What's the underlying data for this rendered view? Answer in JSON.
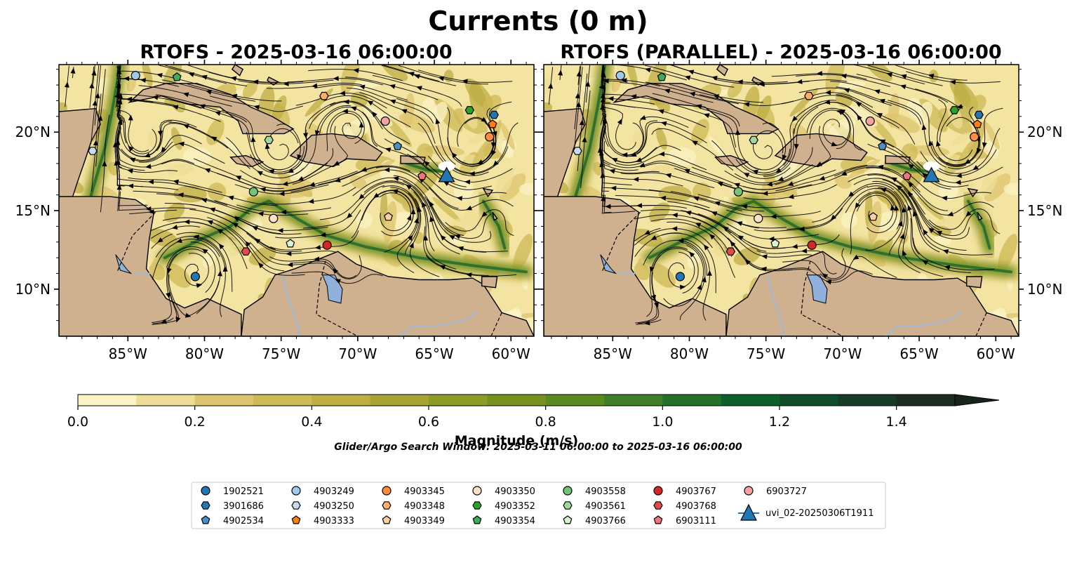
{
  "chart_data": {
    "type": "contour map with streamlines",
    "title": "Currents (0 m)",
    "panels": [
      {
        "title": "RTOFS - 2025-03-16 06:00:00"
      },
      {
        "title": "RTOFS (PARALLEL) - 2025-03-16 06:00:00"
      }
    ],
    "extent": {
      "lon": [
        -89.5,
        -58.5
      ],
      "lat": [
        7.0,
        24.3
      ]
    },
    "x_ticks": [
      {
        "value": -85,
        "label": "85°W"
      },
      {
        "value": -80,
        "label": "80°W"
      },
      {
        "value": -75,
        "label": "75°W"
      },
      {
        "value": -70,
        "label": "70°W"
      },
      {
        "value": -65,
        "label": "65°W"
      },
      {
        "value": -60,
        "label": "60°W"
      }
    ],
    "y_ticks": [
      {
        "value": 20,
        "label": "20°N"
      },
      {
        "value": 15,
        "label": "15°N"
      },
      {
        "value": 10,
        "label": "10°N"
      }
    ],
    "colorbar": {
      "label": "Magnitude (m/s)",
      "levels": [
        0.0,
        0.1,
        0.2,
        0.3,
        0.4,
        0.5,
        0.6,
        0.7,
        0.8,
        0.9,
        1.0,
        1.1,
        1.2,
        1.3,
        1.4,
        1.5
      ],
      "extend": "max",
      "ticks": [
        {
          "value": 0.0,
          "label": "0.0"
        },
        {
          "value": 0.2,
          "label": "0.2"
        },
        {
          "value": 0.4,
          "label": "0.4"
        },
        {
          "value": 0.6,
          "label": "0.6"
        },
        {
          "value": 0.8,
          "label": "0.8"
        },
        {
          "value": 1.0,
          "label": "1.0"
        },
        {
          "value": 1.2,
          "label": "1.2"
        },
        {
          "value": 1.4,
          "label": "1.4"
        }
      ],
      "colors": [
        "#fbf3c3",
        "#eedd96",
        "#ddc46e",
        "#cdb955",
        "#bfae44",
        "#a9a436",
        "#8d9c26",
        "#76911e",
        "#5b8a20",
        "#3f7f27",
        "#23712b",
        "#0d6029",
        "#104d2a",
        "#183b26",
        "#1c2c1e",
        "#16241a"
      ]
    },
    "search_window": "Glider/Argo Search Window: 2025-03-11 06:00:00 to 2025-03-16 06:00:00",
    "legend": {
      "placement": "bottom-center",
      "columns": [
        [
          {
            "label": "1902521",
            "marker": "circle",
            "color": "#1f77b4"
          },
          {
            "label": "3901686",
            "marker": "hexagon",
            "color": "#1f77b4"
          },
          {
            "label": "4902534",
            "marker": "pentagon",
            "color": "#4a90c8"
          }
        ],
        [
          {
            "label": "4903249",
            "marker": "circle",
            "color": "#9ecae9"
          },
          {
            "label": "4903250",
            "marker": "hexagon",
            "color": "#c6dbef"
          },
          {
            "label": "4903333",
            "marker": "pentagon",
            "color": "#ff7f0e"
          }
        ],
        [
          {
            "label": "4903345",
            "marker": "circle",
            "color": "#fd8d3c"
          },
          {
            "label": "4903348",
            "marker": "hexagon",
            "color": "#fdae6b"
          },
          {
            "label": "4903349",
            "marker": "pentagon",
            "color": "#fdd0a2"
          }
        ],
        [
          {
            "label": "4903350",
            "marker": "circle",
            "color": "#fde0c5"
          },
          {
            "label": "4903352",
            "marker": "hexagon",
            "color": "#2ca02c"
          },
          {
            "label": "4903354",
            "marker": "pentagon",
            "color": "#41ab5d"
          }
        ],
        [
          {
            "label": "4903558",
            "marker": "circle",
            "color": "#74c476"
          },
          {
            "label": "4903561",
            "marker": "hexagon",
            "color": "#a1d99b"
          },
          {
            "label": "4903766",
            "marker": "pentagon",
            "color": "#d9f5d3"
          }
        ],
        [
          {
            "label": "4903767",
            "marker": "circle",
            "color": "#d62728"
          },
          {
            "label": "4903768",
            "marker": "hexagon",
            "color": "#e34a4a"
          },
          {
            "label": "6903111",
            "marker": "pentagon",
            "color": "#f0767a"
          }
        ],
        [
          {
            "label": "6903727",
            "marker": "circle",
            "color": "#f4a3a3"
          },
          {
            "label": "uvi_02-20250306T1911",
            "marker": "triangle-line",
            "color": "#1f77b4"
          }
        ]
      ]
    },
    "floats": {
      "left": [
        {
          "id": "1902521",
          "lon": -80.6,
          "lat": 10.8
        },
        {
          "id": "3901686",
          "lon": -61.1,
          "lat": 21.1
        },
        {
          "id": "4902534",
          "lon": -67.4,
          "lat": 19.1
        },
        {
          "id": "4903249",
          "lon": -84.5,
          "lat": 23.6
        },
        {
          "id": "4903250",
          "lon": -87.3,
          "lat": 18.8
        },
        {
          "id": "4903333",
          "lon": -61.2,
          "lat": 20.5
        },
        {
          "id": "4903345",
          "lon": -61.4,
          "lat": 19.7
        },
        {
          "id": "4903348",
          "lon": -72.2,
          "lat": 22.3
        },
        {
          "id": "4903349",
          "lon": -68.0,
          "lat": 14.6
        },
        {
          "id": "4903350",
          "lon": -75.5,
          "lat": 14.5
        },
        {
          "id": "4903352",
          "lon": -62.7,
          "lat": 21.4
        },
        {
          "id": "4903354",
          "lon": -81.8,
          "lat": 23.5
        },
        {
          "id": "4903558",
          "lon": -76.8,
          "lat": 16.2
        },
        {
          "id": "4903561",
          "lon": -75.8,
          "lat": 19.5
        },
        {
          "id": "4903766",
          "lon": -74.4,
          "lat": 12.9
        },
        {
          "id": "4903767",
          "lon": -72.0,
          "lat": 12.8
        },
        {
          "id": "4903768",
          "lon": -77.3,
          "lat": 12.4
        },
        {
          "id": "6903111",
          "lon": -65.8,
          "lat": 17.2
        },
        {
          "id": "6903727",
          "lon": -68.2,
          "lat": 20.7
        }
      ],
      "right": [
        {
          "id": "1902521",
          "lon": -80.6,
          "lat": 10.8
        },
        {
          "id": "3901686",
          "lon": -61.1,
          "lat": 21.1
        },
        {
          "id": "4902534",
          "lon": -67.4,
          "lat": 19.1
        },
        {
          "id": "4903249",
          "lon": -84.5,
          "lat": 23.6
        },
        {
          "id": "4903250",
          "lon": -87.3,
          "lat": 18.8
        },
        {
          "id": "4903333",
          "lon": -61.2,
          "lat": 20.5
        },
        {
          "id": "4903345",
          "lon": -61.4,
          "lat": 19.7
        },
        {
          "id": "4903348",
          "lon": -72.2,
          "lat": 22.3
        },
        {
          "id": "4903349",
          "lon": -68.0,
          "lat": 14.6
        },
        {
          "id": "4903350",
          "lon": -75.5,
          "lat": 14.5
        },
        {
          "id": "4903352",
          "lon": -62.7,
          "lat": 21.4
        },
        {
          "id": "4903354",
          "lon": -81.8,
          "lat": 23.5
        },
        {
          "id": "4903558",
          "lon": -76.8,
          "lat": 16.2
        },
        {
          "id": "4903561",
          "lon": -75.8,
          "lat": 19.5
        },
        {
          "id": "4903766",
          "lon": -74.4,
          "lat": 12.9
        },
        {
          "id": "4903767",
          "lon": -72.0,
          "lat": 12.8
        },
        {
          "id": "4903768",
          "lon": -77.3,
          "lat": 12.4
        },
        {
          "id": "6903111",
          "lon": -65.8,
          "lat": 17.2
        },
        {
          "id": "6903727",
          "lon": -68.2,
          "lat": 20.7
        }
      ]
    },
    "glider": {
      "id": "uvi_02-20250306T1911",
      "lon": -64.2,
      "lat": 17.2
    },
    "colors": {
      "land": "#cfb18f",
      "coast": "#000000",
      "rivers": "#9fb8d6",
      "lake": "#8fb1dc",
      "ocean_base": "#f3e4a2",
      "stream": "#000000"
    }
  }
}
